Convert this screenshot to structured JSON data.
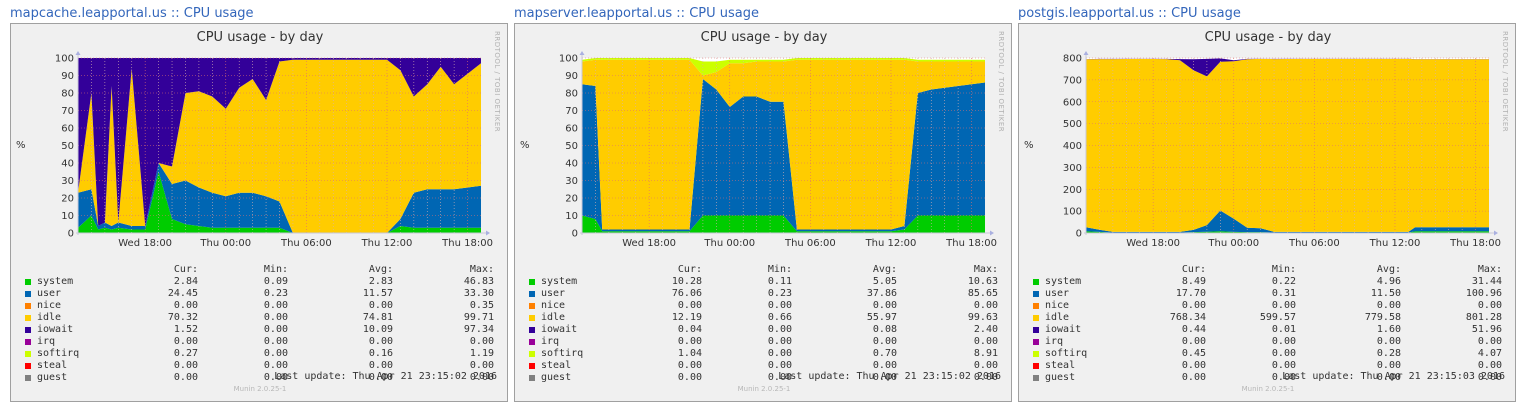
{
  "hosts": [
    {
      "host": "mapcache.leapportal.us",
      "sep": " :: ",
      "graph_link": "CPU usage"
    },
    {
      "host": "mapserver.leapportal.us",
      "sep": " :: ",
      "graph_link": "CPU usage"
    },
    {
      "host": "postgis.leapportal.us",
      "sep": " :: ",
      "graph_link": "CPU usage"
    }
  ],
  "common": {
    "rrdtool_label": "RRDTOOL / TOBI OETIKER",
    "munin_version": "Munin 2.0.25-1",
    "y_unit": "%",
    "legend_headers": [
      "Cur:",
      "Min:",
      "Avg:",
      "Max:"
    ],
    "colors": {
      "system": "#00cc00",
      "user": "#0066b3",
      "nice": "#ff8000",
      "idle": "#ffcc00",
      "iowait": "#330099",
      "irq": "#990099",
      "softirq": "#ccff00",
      "steal": "#ff0000",
      "guest": "#808080"
    }
  },
  "chart_data": [
    {
      "type": "area",
      "stacked": true,
      "title": "CPU usage - by day",
      "ylabel": "%",
      "ylim": [
        0,
        100
      ],
      "yticks": [
        0,
        10,
        20,
        30,
        40,
        50,
        60,
        70,
        80,
        90,
        100
      ],
      "xticks": [
        "Wed 18:00",
        "Thu 00:00",
        "Thu 06:00",
        "Thu 12:00",
        "Thu 18:00"
      ],
      "grid": true,
      "last_update": "Last update:  Thu Apr 21 23:15:02 2016",
      "legend": [
        {
          "name": "system",
          "cur": "2.84",
          "min": "0.09",
          "avg": "2.83",
          "max": "46.83"
        },
        {
          "name": "user",
          "cur": "24.45",
          "min": "0.23",
          "avg": "11.57",
          "max": "33.30"
        },
        {
          "name": "nice",
          "cur": "0.00",
          "min": "0.00",
          "avg": "0.00",
          "max": "0.35"
        },
        {
          "name": "idle",
          "cur": "70.32",
          "min": "0.00",
          "avg": "74.81",
          "max": "99.71"
        },
        {
          "name": "iowait",
          "cur": "1.52",
          "min": "0.00",
          "avg": "10.09",
          "max": "97.34"
        },
        {
          "name": "irq",
          "cur": "0.00",
          "min": "0.00",
          "avg": "0.00",
          "max": "0.00"
        },
        {
          "name": "softirq",
          "cur": "0.27",
          "min": "0.00",
          "avg": "0.16",
          "max": "1.19"
        },
        {
          "name": "steal",
          "cur": "0.00",
          "min": "0.00",
          "avg": "0.00",
          "max": "0.00"
        },
        {
          "name": "guest",
          "cur": "0.00",
          "min": "0.00",
          "avg": "0.00",
          "max": "0.00"
        }
      ],
      "x_hours": [
        0,
        1,
        1.5,
        2,
        2.5,
        3,
        4,
        5,
        6,
        7,
        8,
        9,
        10,
        11,
        12,
        13,
        14,
        15,
        16,
        17,
        18,
        19,
        20,
        21,
        22,
        23,
        24,
        25,
        26,
        27,
        28,
        29,
        30
      ],
      "series": [
        {
          "name": "system",
          "values": [
            3,
            10,
            2,
            3,
            2,
            3,
            2,
            2,
            35,
            8,
            5,
            4,
            3,
            3,
            3,
            3,
            3,
            3,
            0,
            0,
            0,
            0,
            0,
            0,
            0,
            0,
            4,
            3,
            3,
            3,
            3,
            3,
            3
          ]
        },
        {
          "name": "user",
          "values": [
            20,
            15,
            2,
            3,
            2,
            3,
            2,
            2,
            5,
            20,
            25,
            22,
            20,
            18,
            20,
            20,
            18,
            15,
            0,
            0,
            0,
            0,
            0,
            0,
            0,
            0,
            4,
            20,
            22,
            22,
            22,
            23,
            24
          ]
        },
        {
          "name": "idle",
          "values": [
            0,
            55,
            0,
            0,
            80,
            0,
            90,
            0,
            0,
            10,
            50,
            55,
            55,
            50,
            60,
            65,
            55,
            80,
            99,
            99,
            99,
            99,
            99,
            99,
            99,
            99,
            85,
            55,
            60,
            70,
            60,
            65,
            70
          ]
        },
        {
          "name": "iowait",
          "values": [
            77,
            20,
            96,
            94,
            16,
            94,
            6,
            96,
            60,
            62,
            20,
            19,
            22,
            29,
            17,
            12,
            24,
            2,
            1,
            1,
            1,
            1,
            1,
            1,
            1,
            1,
            7,
            22,
            15,
            5,
            15,
            9,
            3
          ]
        }
      ]
    },
    {
      "type": "area",
      "stacked": true,
      "title": "CPU usage - by day",
      "ylabel": "%",
      "ylim": [
        0,
        100
      ],
      "yticks": [
        0,
        10,
        20,
        30,
        40,
        50,
        60,
        70,
        80,
        90,
        100
      ],
      "xticks": [
        "Wed 18:00",
        "Thu 00:00",
        "Thu 06:00",
        "Thu 12:00",
        "Thu 18:00"
      ],
      "grid": true,
      "last_update": "Last update:  Thu Apr 21 23:15:02 2016",
      "legend": [
        {
          "name": "system",
          "cur": "10.28",
          "min": "0.11",
          "avg": "5.05",
          "max": "10.63"
        },
        {
          "name": "user",
          "cur": "76.06",
          "min": "0.23",
          "avg": "37.86",
          "max": "85.65"
        },
        {
          "name": "nice",
          "cur": "0.00",
          "min": "0.00",
          "avg": "0.00",
          "max": "0.00"
        },
        {
          "name": "idle",
          "cur": "12.19",
          "min": "0.66",
          "avg": "55.97",
          "max": "99.63"
        },
        {
          "name": "iowait",
          "cur": "0.04",
          "min": "0.00",
          "avg": "0.08",
          "max": "2.40"
        },
        {
          "name": "irq",
          "cur": "0.00",
          "min": "0.00",
          "avg": "0.00",
          "max": "0.00"
        },
        {
          "name": "softirq",
          "cur": "1.04",
          "min": "0.00",
          "avg": "0.70",
          "max": "8.91"
        },
        {
          "name": "steal",
          "cur": "0.00",
          "min": "0.00",
          "avg": "0.00",
          "max": "0.00"
        },
        {
          "name": "guest",
          "cur": "0.00",
          "min": "0.00",
          "avg": "0.00",
          "max": "0.00"
        }
      ],
      "x_hours": [
        0,
        1,
        1.5,
        2,
        4,
        6,
        8,
        9,
        10,
        11,
        12,
        13,
        14,
        15,
        16,
        17,
        18,
        19,
        20,
        21,
        22,
        23,
        24,
        25,
        26,
        27,
        28,
        29,
        30
      ],
      "series": [
        {
          "name": "system",
          "values": [
            10,
            8,
            1,
            1,
            1,
            1,
            1,
            10,
            10,
            10,
            10,
            10,
            10,
            10,
            1,
            1,
            1,
            1,
            1,
            1,
            1,
            1,
            2,
            10,
            10,
            10,
            10,
            10,
            10
          ]
        },
        {
          "name": "user",
          "values": [
            75,
            76,
            1,
            1,
            1,
            1,
            1,
            78,
            72,
            62,
            68,
            68,
            65,
            65,
            1,
            1,
            1,
            1,
            1,
            1,
            1,
            1,
            2,
            70,
            72,
            73,
            74,
            75,
            76
          ]
        },
        {
          "name": "idle",
          "values": [
            13,
            15,
            97,
            97,
            97,
            97,
            97,
            2,
            10,
            25,
            19,
            20,
            23,
            23,
            97,
            97,
            97,
            97,
            97,
            97,
            97,
            97,
            95,
            18,
            16,
            15,
            14,
            13,
            12
          ]
        },
        {
          "name": "softirq",
          "values": [
            1,
            1,
            1,
            1,
            1,
            1,
            1,
            8,
            6,
            2,
            2,
            1,
            1,
            1,
            1,
            1,
            1,
            1,
            1,
            1,
            1,
            1,
            1,
            1,
            1,
            1,
            1,
            1,
            1
          ]
        }
      ]
    },
    {
      "type": "area",
      "stacked": true,
      "title": "CPU usage - by day",
      "ylabel": "%",
      "ylim": [
        0,
        800
      ],
      "yticks": [
        0,
        100,
        200,
        300,
        400,
        500,
        600,
        700,
        800
      ],
      "xticks": [
        "Wed 18:00",
        "Thu 00:00",
        "Thu 06:00",
        "Thu 12:00",
        "Thu 18:00"
      ],
      "grid": true,
      "last_update": "Last update:  Thu Apr 21 23:15:03 2016",
      "legend": [
        {
          "name": "system",
          "cur": "8.49",
          "min": "0.22",
          "avg": "4.96",
          "max": "31.44"
        },
        {
          "name": "user",
          "cur": "17.70",
          "min": "0.31",
          "avg": "11.50",
          "max": "100.96"
        },
        {
          "name": "nice",
          "cur": "0.00",
          "min": "0.00",
          "avg": "0.00",
          "max": "0.00"
        },
        {
          "name": "idle",
          "cur": "768.34",
          "min": "599.57",
          "avg": "779.58",
          "max": "801.28"
        },
        {
          "name": "iowait",
          "cur": "0.44",
          "min": "0.01",
          "avg": "1.60",
          "max": "51.96"
        },
        {
          "name": "irq",
          "cur": "0.00",
          "min": "0.00",
          "avg": "0.00",
          "max": "0.00"
        },
        {
          "name": "softirq",
          "cur": "0.45",
          "min": "0.00",
          "avg": "0.28",
          "max": "4.07"
        },
        {
          "name": "steal",
          "cur": "0.00",
          "min": "0.00",
          "avg": "0.00",
          "max": "0.00"
        },
        {
          "name": "guest",
          "cur": "0.00",
          "min": "0.00",
          "avg": "0.00",
          "max": "0.00"
        }
      ],
      "x_hours": [
        0,
        1,
        2,
        4,
        6,
        7,
        8,
        9,
        10,
        11,
        12,
        13,
        14,
        16,
        18,
        20,
        22,
        24,
        24.5,
        26,
        28,
        30
      ],
      "series": [
        {
          "name": "system",
          "values": [
            8,
            5,
            2,
            2,
            2,
            2,
            4,
            6,
            8,
            5,
            4,
            4,
            2,
            2,
            2,
            2,
            2,
            2,
            8,
            8,
            8,
            8
          ]
        },
        {
          "name": "user",
          "values": [
            18,
            10,
            3,
            3,
            3,
            3,
            10,
            30,
            95,
            60,
            20,
            18,
            3,
            3,
            3,
            3,
            3,
            3,
            18,
            18,
            18,
            18
          ]
        },
        {
          "name": "idle",
          "values": [
            768,
            780,
            790,
            791,
            790,
            785,
            730,
            680,
            680,
            720,
            770,
            774,
            790,
            791,
            791,
            791,
            791,
            791,
            768,
            768,
            768,
            768
          ]
        },
        {
          "name": "iowait",
          "values": [
            1,
            1,
            1,
            1,
            1,
            5,
            50,
            80,
            15,
            5,
            2,
            1,
            1,
            1,
            1,
            1,
            1,
            1,
            1,
            1,
            1,
            1
          ]
        }
      ]
    }
  ]
}
